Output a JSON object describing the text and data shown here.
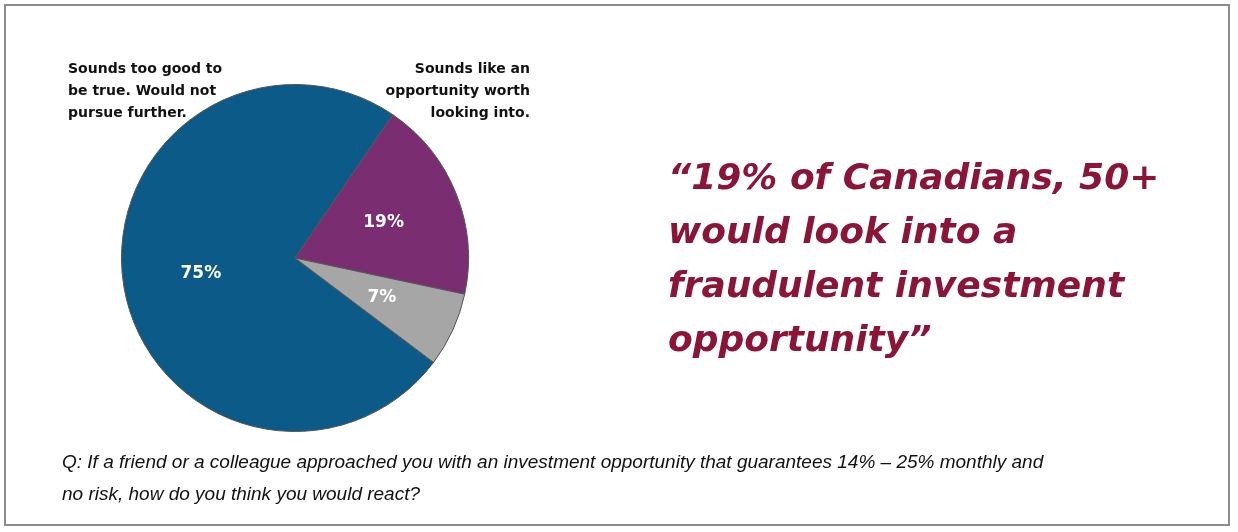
{
  "chart_data": {
    "type": "pie",
    "categories": [
      "Sounds too good to be true. Would not pursue further.",
      "Sounds like an opportunity worth looking into.",
      null
    ],
    "values": [
      75,
      19,
      7
    ],
    "colors": [
      "#0b5a87",
      "#7b2d72",
      "#a6a6a6"
    ],
    "value_labels": [
      "75%",
      "19%",
      "7%"
    ],
    "legend": false,
    "annotations": [
      "“19% of Canadians, 50+ would look into a fraudulent investment opportunity”",
      "Q: If a friend or a colleague approached you with an investment opportunity that guarantees 14% – 25% monthly and no risk, how do you think you would react?"
    ]
  }
}
